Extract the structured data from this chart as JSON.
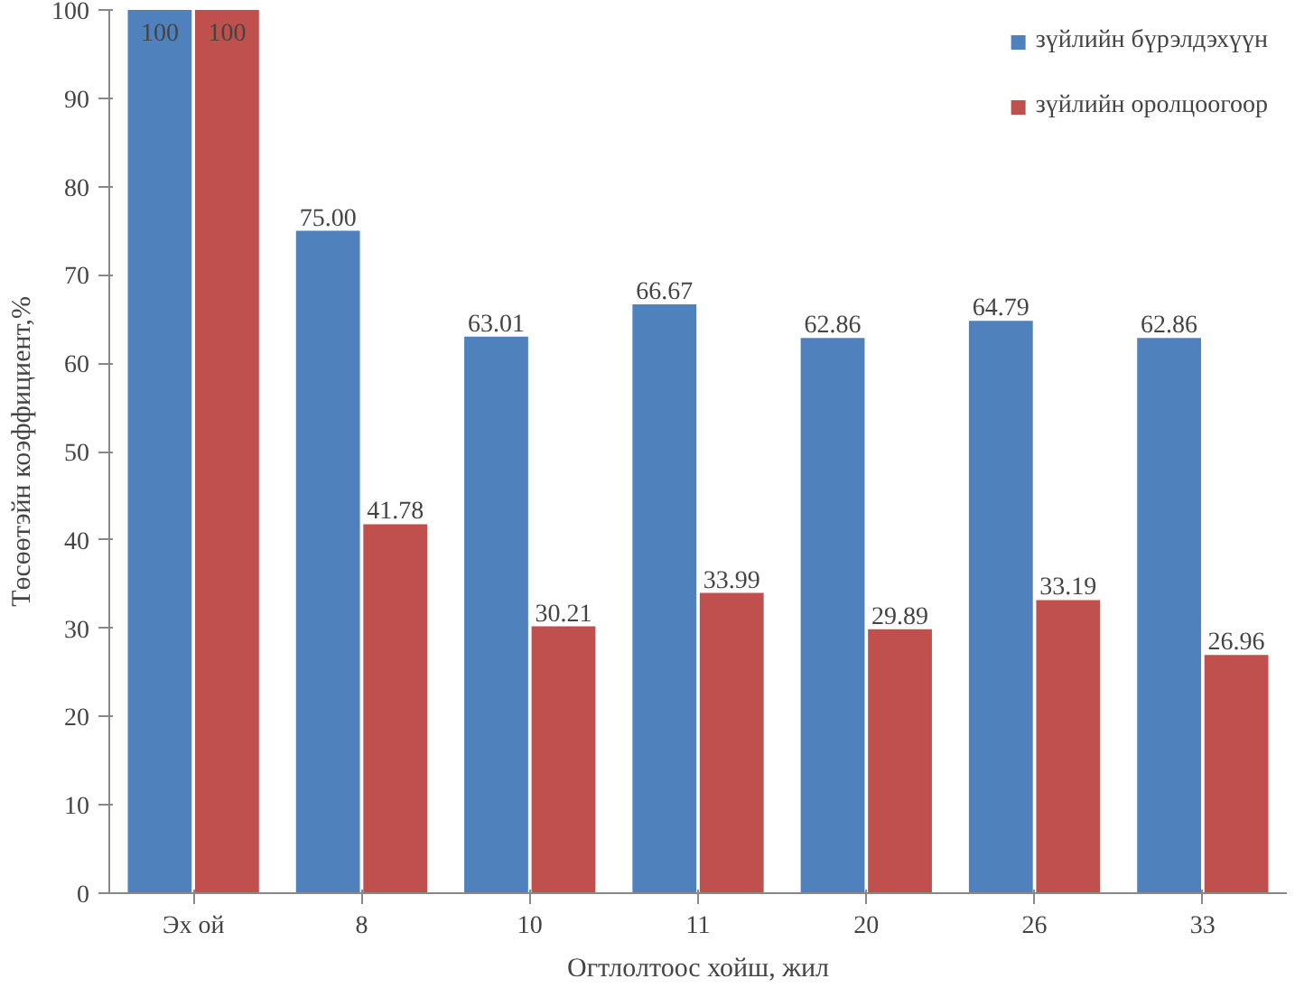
{
  "chart_data": {
    "type": "bar",
    "xlabel": "Огтлолтоос хойш, жил",
    "ylabel": "Төсөөтэйн коэффициент,%",
    "categories": [
      "Эх ой",
      "8",
      "10",
      "11",
      "20",
      "26",
      "33"
    ],
    "series": [
      {
        "name": "зүйлийн бүрэлдэхүүн",
        "color": "#4f81bd",
        "values": [
          100,
          75.0,
          63.01,
          66.67,
          62.86,
          64.79,
          62.86
        ],
        "value_labels": [
          "100",
          "75.00",
          "63.01",
          "66.67",
          "62.86",
          "64.79",
          "62.86"
        ]
      },
      {
        "name": "зүйлийн оролцоогоор",
        "color": "#c0504d",
        "values": [
          100,
          41.78,
          30.21,
          33.99,
          29.89,
          33.19,
          26.96
        ],
        "value_labels": [
          "100",
          "41.78",
          "30.21",
          "33.99",
          "29.89",
          "33.19",
          "26.96"
        ]
      }
    ],
    "ylim": [
      0,
      100
    ],
    "yticks": [
      0,
      10,
      20,
      30,
      40,
      50,
      60,
      70,
      80,
      90,
      100
    ],
    "grid": false,
    "legend": "top right"
  }
}
